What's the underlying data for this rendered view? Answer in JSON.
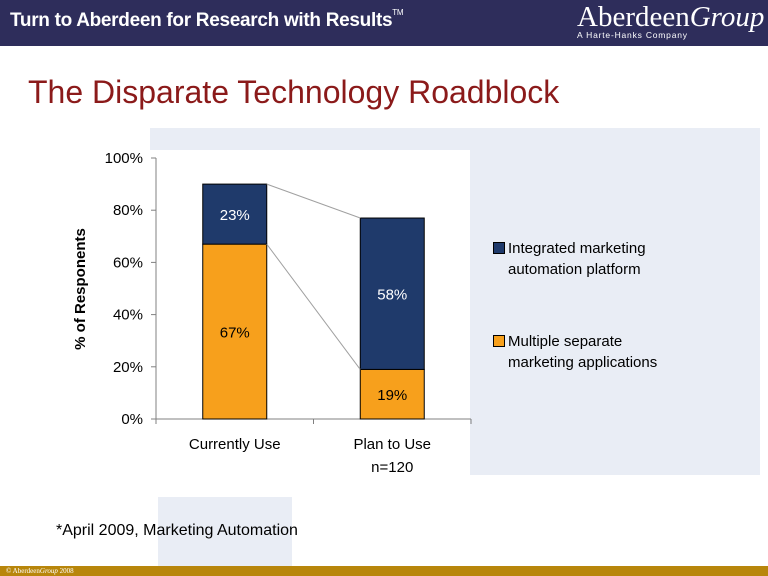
{
  "header": {
    "tagline": "Turn to Aberdeen for Research with Results",
    "tm": "TM",
    "logo_main": "Aberdeen",
    "logo_group": "Group",
    "logo_sub": "A Harte-Hanks Company"
  },
  "title": "The Disparate Technology Roadblock",
  "footnote": "*April 2009, Marketing Automation",
  "copyright": {
    "prefix": "© Aberdeen",
    "group": "Group",
    "year": "2008"
  },
  "colors": {
    "header_bg": "#2e2d5b",
    "title": "#8b1a1a",
    "integrated": "#1f3a6b",
    "multiple": "#f7a01c",
    "footer": "#b8860b"
  },
  "chart_data": {
    "type": "bar",
    "stacked": true,
    "categories": [
      "Currently Use",
      "Plan to Use"
    ],
    "series": [
      {
        "name": "Multiple separate marketing applications",
        "values": [
          67,
          19
        ],
        "labels": [
          "67%",
          "19%"
        ],
        "color": "#f7a01c"
      },
      {
        "name": "Integrated marketing automation platform",
        "values": [
          23,
          58
        ],
        "labels": [
          "23%",
          "58%"
        ],
        "color": "#1f3a6b"
      }
    ],
    "ylabel": "% of Responents",
    "ylim": [
      0,
      100
    ],
    "yticks": [
      "0%",
      "20%",
      "40%",
      "60%",
      "80%",
      "100%"
    ],
    "annotation": "n=120",
    "grid": false,
    "legend_position": "right"
  }
}
